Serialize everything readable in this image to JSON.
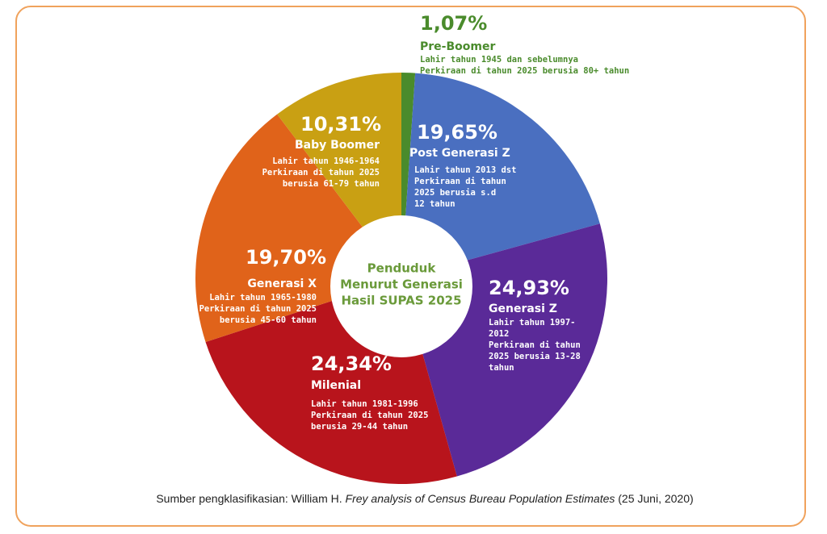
{
  "chart_data": {
    "type": "donut",
    "categories": [
      "Pre-Boomer",
      "Post Generasi Z",
      "Generasi Z",
      "Milenial",
      "Generasi X",
      "Baby Boomer"
    ],
    "values": [
      1.07,
      19.65,
      24.93,
      24.34,
      19.7,
      10.31
    ],
    "value_labels": [
      "1,07%",
      "19,65%",
      "24,93%",
      "24,34%",
      "19,70%",
      "10,31%"
    ],
    "colors": [
      "#4a8b2c",
      "#4a6fc0",
      "#5a2a98",
      "#b8141c",
      "#e0631a",
      "#c9a013"
    ],
    "category_notes": [
      [
        "Lahir tahun 1945 dan sebelumnya",
        "Perkiraan di tahun 2025 berusia 80+ tahun"
      ],
      [
        "Lahir tahun 2013 dst",
        "Perkiraan di tahun",
        "2025 berusia s.d",
        "12 tahun"
      ],
      [
        "Lahir tahun 1997-",
        "2012",
        "Perkiraan di tahun",
        "2025 berusia 13-28",
        "tahun"
      ],
      [
        "Lahir tahun 1981-1996",
        "Perkiraan di tahun 2025",
        "berusia 29-44 tahun"
      ],
      [
        "Lahir tahun 1965-1980",
        "Perkiraan di tahun 2025",
        "berusia 45-60 tahun"
      ],
      [
        "Lahir tahun 1946-1964",
        "Perkiraan di tahun 2025",
        "berusia 61-79 tahun"
      ]
    ],
    "center_label": [
      "Penduduk",
      "Menurut Generasi",
      "Hasil SUPAS 2025"
    ],
    "source": [
      "Sumber pengklasifikasian: William H. ",
      "Frey analysis of Census Bureau Population Estimates",
      " (25 Juni, 2020)"
    ]
  }
}
